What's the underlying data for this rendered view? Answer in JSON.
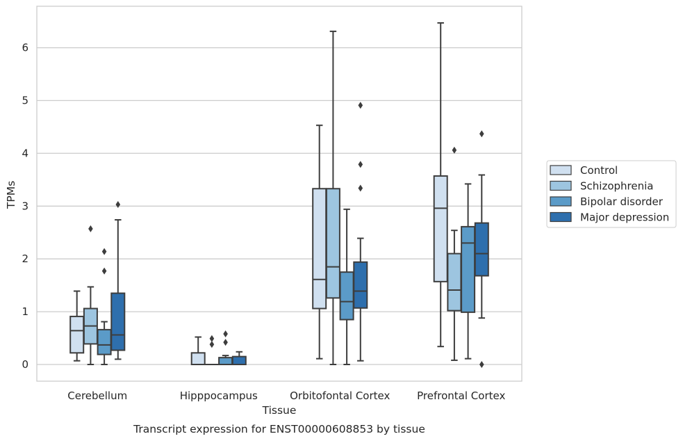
{
  "chart_data": {
    "type": "box",
    "caption": "Transcript expression for ENST00000608853 by tissue",
    "xlabel": "Tissue",
    "ylabel": "TPMs",
    "ylim": [
      -0.3,
      6.8
    ],
    "yticks": [
      0,
      1,
      2,
      3,
      4,
      5,
      6
    ],
    "grid": true,
    "legend_position": "right",
    "categories": [
      "Cerebellum",
      "Hipppocampus",
      "Orbitofontal Cortex",
      "Prefrontal Cortex"
    ],
    "series": [
      {
        "name": "Control",
        "color": "#d0e0f0",
        "boxes": [
          {
            "whisker_low": 0.07,
            "q1": 0.22,
            "median": 0.64,
            "q3": 0.91,
            "whisker_high": 1.39,
            "outliers": []
          },
          {
            "whisker_low": 0.0,
            "q1": 0.0,
            "median": 0.0,
            "q3": 0.22,
            "whisker_high": 0.52,
            "outliers": []
          },
          {
            "whisker_low": 0.11,
            "q1": 1.06,
            "median": 1.61,
            "q3": 3.33,
            "whisker_high": 4.53,
            "outliers": []
          },
          {
            "whisker_low": 0.34,
            "q1": 1.57,
            "median": 2.96,
            "q3": 3.57,
            "whisker_high": 6.47,
            "outliers": []
          }
        ]
      },
      {
        "name": "Schizophrenia",
        "color": "#9dc5e0",
        "boxes": [
          {
            "whisker_low": 0.0,
            "q1": 0.39,
            "median": 0.73,
            "q3": 1.06,
            "whisker_high": 1.47,
            "outliers": [
              2.57
            ]
          },
          {
            "whisker_low": 0.0,
            "q1": 0.0,
            "median": 0.0,
            "q3": 0.0,
            "whisker_high": 0.0,
            "outliers": [
              0.38,
              0.49
            ]
          },
          {
            "whisker_low": 0.0,
            "q1": 1.26,
            "median": 1.85,
            "q3": 3.33,
            "whisker_high": 6.31,
            "outliers": []
          },
          {
            "whisker_low": 0.08,
            "q1": 1.02,
            "median": 1.41,
            "q3": 2.1,
            "whisker_high": 2.54,
            "outliers": [
              4.06
            ]
          }
        ]
      },
      {
        "name": "Bipolar disorder",
        "color": "#5b9bc8",
        "boxes": [
          {
            "whisker_low": 0.0,
            "q1": 0.19,
            "median": 0.37,
            "q3": 0.66,
            "whisker_high": 0.81,
            "outliers": [
              1.77,
              2.14
            ]
          },
          {
            "whisker_low": 0.0,
            "q1": 0.0,
            "median": 0.0,
            "q3": 0.13,
            "whisker_high": 0.17,
            "outliers": [
              0.42,
              0.58
            ]
          },
          {
            "whisker_low": 0.0,
            "q1": 0.85,
            "median": 1.19,
            "q3": 1.75,
            "whisker_high": 2.94,
            "outliers": []
          },
          {
            "whisker_low": 0.11,
            "q1": 0.99,
            "median": 2.3,
            "q3": 2.61,
            "whisker_high": 3.42,
            "outliers": []
          }
        ]
      },
      {
        "name": "Major depression",
        "color": "#2e6fad",
        "boxes": [
          {
            "whisker_low": 0.1,
            "q1": 0.27,
            "median": 0.56,
            "q3": 1.35,
            "whisker_high": 2.74,
            "outliers": [
              3.03
            ]
          },
          {
            "whisker_low": 0.0,
            "q1": 0.0,
            "median": 0.0,
            "q3": 0.15,
            "whisker_high": 0.24,
            "outliers": []
          },
          {
            "whisker_low": 0.07,
            "q1": 1.07,
            "median": 1.39,
            "q3": 1.94,
            "whisker_high": 2.39,
            "outliers": [
              3.34,
              3.79,
              4.91
            ]
          },
          {
            "whisker_low": 0.88,
            "q1": 1.68,
            "median": 2.1,
            "q3": 2.68,
            "whisker_high": 3.59,
            "outliers": [
              0.0,
              4.37
            ]
          }
        ]
      }
    ]
  }
}
